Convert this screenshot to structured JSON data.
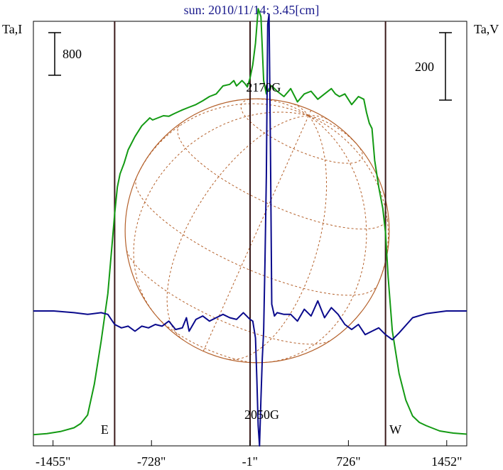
{
  "chart_data": {
    "type": "line",
    "title": "sun: 2010/11/14: 3.45[cm]",
    "left_axis_label": "Ta,I",
    "right_axis_label": "Ta,V",
    "left_scale_label": "800",
    "right_scale_label": "200",
    "xlim": [
      -1600,
      1600
    ],
    "x_ticks": [
      -1455,
      -728,
      -1,
      726,
      1452
    ],
    "x_tick_labels": [
      "-1455\"",
      "-728\"",
      "-1\"",
      "726\"",
      "1452\""
    ],
    "limb_markers": [
      {
        "label": "E",
        "x": -1000
      },
      {
        "label": "W",
        "x": 1000
      }
    ],
    "center_marker_x": 0,
    "disk_radius_arcsec": 975,
    "grid": true,
    "annotations": [
      {
        "text": "2170G",
        "x": 120,
        "series": "V"
      },
      {
        "text": "2050G",
        "x": 60,
        "series": "V"
      }
    ],
    "colors": {
      "I": "#139a13",
      "V": "#0a0a8c",
      "disk": "#b4602a",
      "markers": "#3a1a1a",
      "title": "#1a1a8c"
    },
    "series": [
      {
        "name": "I",
        "x": [
          -1600,
          -1500,
          -1400,
          -1300,
          -1250,
          -1200,
          -1150,
          -1100,
          -1050,
          -1020,
          -1000,
          -980,
          -960,
          -930,
          -900,
          -850,
          -800,
          -760,
          -740,
          -720,
          -680,
          -640,
          -600,
          -560,
          -500,
          -450,
          -400,
          -350,
          -300,
          -250,
          -200,
          -150,
          -120,
          -100,
          -80,
          -60,
          -40,
          -20,
          0,
          20,
          40,
          60,
          80,
          100,
          120,
          140,
          160,
          200,
          250,
          300,
          350,
          400,
          450,
          500,
          550,
          600,
          630,
          660,
          700,
          750,
          800,
          840,
          860,
          880,
          900,
          920,
          950,
          980,
          1000,
          1020,
          1050,
          1100,
          1150,
          1200,
          1250,
          1300,
          1400,
          1500,
          1600
        ],
        "y": [
          50,
          70,
          110,
          180,
          260,
          420,
          1000,
          1800,
          2700,
          3600,
          4200,
          4700,
          4950,
          5150,
          5400,
          5650,
          5850,
          5950,
          6000,
          5960,
          6000,
          6040,
          6030,
          6080,
          6150,
          6200,
          6250,
          6320,
          6400,
          6450,
          6600,
          6630,
          6700,
          6600,
          6650,
          6700,
          6650,
          6580,
          6750,
          7000,
          7400,
          8050,
          7900,
          6700,
          6450,
          6550,
          6600,
          6500,
          6400,
          6550,
          6300,
          6450,
          6500,
          6350,
          6450,
          6550,
          6450,
          6400,
          6450,
          6250,
          6400,
          6350,
          6100,
          5900,
          5800,
          5200,
          4700,
          4300,
          3850,
          3000,
          2000,
          1200,
          700,
          400,
          280,
          220,
          120,
          80,
          60
        ]
      },
      {
        "name": "V",
        "x": [
          -1600,
          -1450,
          -1300,
          -1200,
          -1100,
          -1050,
          -1000,
          -950,
          -900,
          -850,
          -800,
          -750,
          -700,
          -650,
          -600,
          -550,
          -500,
          -470,
          -450,
          -400,
          -350,
          -300,
          -250,
          -200,
          -150,
          -100,
          -50,
          0,
          20,
          40,
          50,
          60,
          70,
          80,
          90,
          100,
          110,
          120,
          130,
          140,
          150,
          160,
          180,
          200,
          250,
          300,
          350,
          400,
          450,
          500,
          550,
          600,
          650,
          700,
          750,
          800,
          850,
          900,
          950,
          1000,
          1050,
          1100,
          1200,
          1300,
          1450,
          1600
        ],
        "y": [
          0,
          0,
          -5,
          -10,
          -5,
          -10,
          -40,
          -50,
          -45,
          -60,
          -45,
          -50,
          -40,
          -45,
          -30,
          -55,
          -50,
          -20,
          -60,
          -25,
          -15,
          -30,
          -20,
          -10,
          -20,
          -25,
          -5,
          -25,
          -30,
          -80,
          -200,
          -340,
          -400,
          -260,
          -140,
          -60,
          150,
          400,
          850,
          880,
          500,
          20,
          -15,
          -5,
          -10,
          -10,
          -30,
          5,
          -15,
          30,
          -20,
          10,
          -10,
          -40,
          -55,
          -40,
          -70,
          -60,
          -50,
          -70,
          -85,
          -65,
          -20,
          -8,
          0,
          0
        ]
      }
    ]
  }
}
